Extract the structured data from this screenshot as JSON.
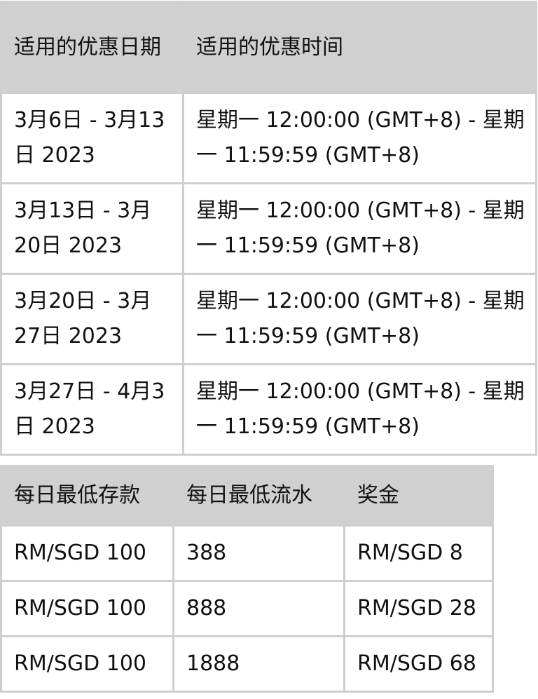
{
  "periods_table": {
    "headers": [
      "适用的优惠日期",
      "适用的优惠时间"
    ],
    "rows": [
      [
        "3月6日 - 3月13日 2023",
        "星期一 12:00:00 (GMT+8) - 星期一 11:59:59 (GMT+8)"
      ],
      [
        "3月13日 - 3月20日 2023",
        "星期一 12:00:00 (GMT+8) - 星期一 11:59:59 (GMT+8)"
      ],
      [
        "3月20日 - 3月27日 2023",
        "星期一 12:00:00 (GMT+8) - 星期一 11:59:59 (GMT+8)"
      ],
      [
        "3月27日 - 4月3日 2023",
        "星期一 12:00:00 (GMT+8) - 星期一 11:59:59 (GMT+8)"
      ]
    ]
  },
  "bonus_table": {
    "headers": [
      "每日最低存款",
      "每日最低流水",
      "奖金"
    ],
    "rows": [
      [
        "RM/SGD 100",
        "388",
        "RM/SGD 8"
      ],
      [
        "RM/SGD 100",
        "888",
        "RM/SGD 28"
      ],
      [
        "RM/SGD 100",
        "1888",
        "RM/SGD 68"
      ]
    ]
  },
  "colors": {
    "header_bg": "#d0d0d0",
    "border": "#cfcfcf"
  }
}
